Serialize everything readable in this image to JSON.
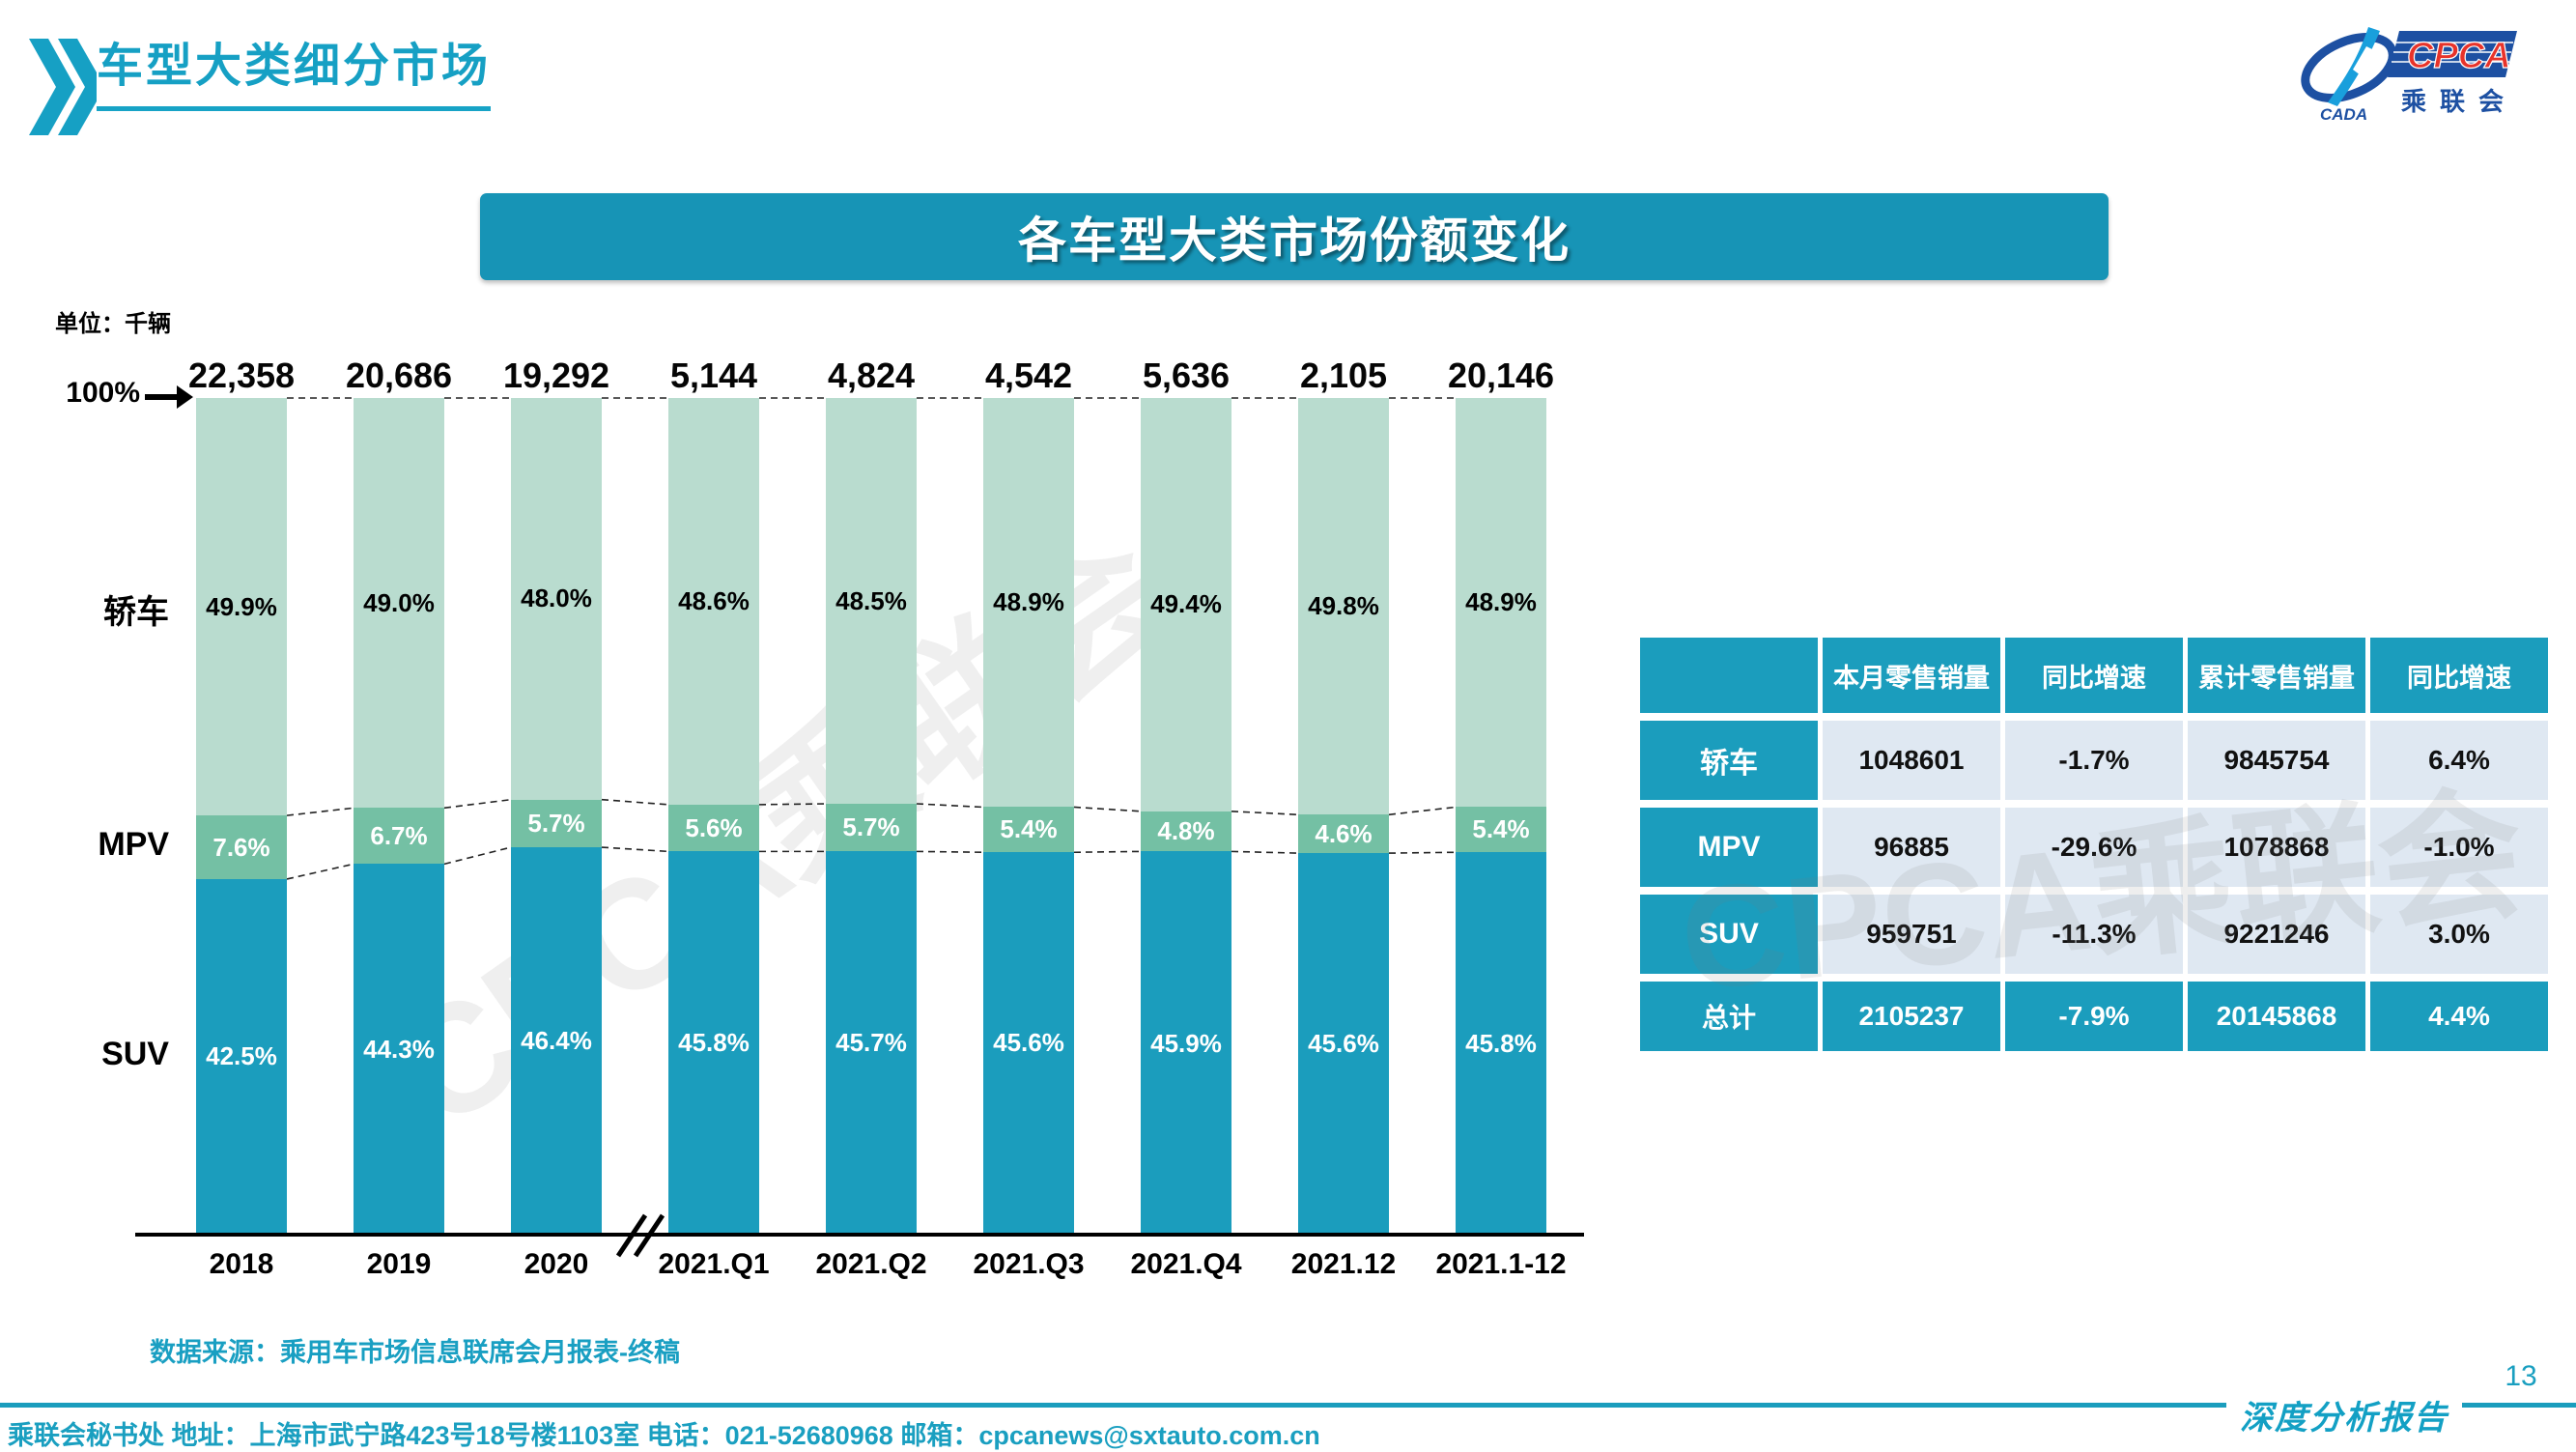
{
  "header": {
    "title": "车型大类细分市场"
  },
  "logo": {
    "cpca": "CPCA",
    "cada": "CADA",
    "cn": "乘联会"
  },
  "banner": {
    "title": "各车型大类市场份额变化"
  },
  "chart_data": {
    "type": "bar",
    "stacked": true,
    "title": "各车型大类市场份额变化",
    "unit_label": "单位：千辆",
    "axis_top_label": "100%",
    "categories": [
      "2018",
      "2019",
      "2020",
      "2021.Q1",
      "2021.Q2",
      "2021.Q3",
      "2021.Q4",
      "2021.12",
      "2021.1-12"
    ],
    "totals": [
      "22,358",
      "20,686",
      "19,292",
      "5,144",
      "4,824",
      "4,542",
      "5,636",
      "2,105",
      "20,146"
    ],
    "series": [
      {
        "name": "轿车",
        "color": "#b9dccf",
        "label_color": "#000000",
        "values": [
          49.9,
          49.0,
          48.0,
          48.6,
          48.5,
          48.9,
          49.4,
          49.8,
          48.9
        ]
      },
      {
        "name": "MPV",
        "color": "#74c0a4",
        "label_color": "#ffffff",
        "values": [
          7.6,
          6.7,
          5.7,
          5.6,
          5.7,
          5.4,
          4.8,
          4.6,
          5.4
        ]
      },
      {
        "name": "SUV",
        "color": "#1b9dbd",
        "label_color": "#ffffff",
        "values": [
          42.5,
          44.3,
          46.4,
          45.8,
          45.7,
          45.6,
          45.9,
          45.6,
          45.8
        ]
      }
    ],
    "ylim": [
      0,
      100
    ],
    "grid": false,
    "break_after_index": 2,
    "legend_position": "left"
  },
  "table": {
    "headers": [
      "",
      "本月零售销量",
      "同比增速",
      "累计零售销量",
      "同比增速"
    ],
    "rows": [
      {
        "label": "轿车",
        "values": [
          "1048601",
          "-1.7%",
          "9845754",
          "6.4%"
        ],
        "total": false
      },
      {
        "label": "MPV",
        "values": [
          "96885",
          "-29.6%",
          "1078868",
          "-1.0%"
        ],
        "total": false
      },
      {
        "label": "SUV",
        "values": [
          "959751",
          "-11.3%",
          "9221246",
          "3.0%"
        ],
        "total": false
      },
      {
        "label": "总计",
        "values": [
          "2105237",
          "-7.9%",
          "20145868",
          "4.4%"
        ],
        "total": true
      }
    ]
  },
  "source": {
    "text": "数据来源：乘用车市场信息联席会月报表-终稿"
  },
  "footer": {
    "text": "乘联会秘书处  地址：上海市武宁路423号18号楼1103室 电话：021-52680968  邮箱：cpcanews@sxtauto.com.cn",
    "page": "13",
    "report": "深度分析报告"
  },
  "watermark": {
    "text": "CPCA乘联会"
  },
  "colors": {
    "teal": "#1b9dbd",
    "banner": "#1794b6",
    "title": "#16a0c4",
    "mpv_green": "#74c0a4",
    "sedan_green": "#b9dccf",
    "cell_bg": "#dfe8f2",
    "logo_blue": "#1d50a2",
    "logo_red": "#e8332a"
  }
}
